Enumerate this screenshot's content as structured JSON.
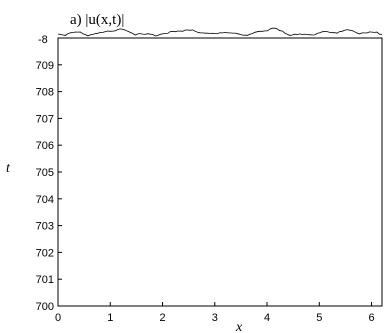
{
  "chart_data": {
    "type": "waterfall",
    "title": "a) |u(x,t)|",
    "xlabel": "x",
    "ylabel": "t",
    "xlim": [
      0,
      6.2
    ],
    "ylim": [
      700,
      710
    ],
    "xticks": [
      "0",
      "1",
      "2",
      "3",
      "4",
      "5",
      "6"
    ],
    "yticks": [
      "700",
      "701",
      "702",
      "703",
      "704",
      "705",
      "706",
      "707",
      "708",
      "709"
    ],
    "top_tick_label": "-8",
    "line_color": "#000000",
    "background": "#ffffff"
  }
}
